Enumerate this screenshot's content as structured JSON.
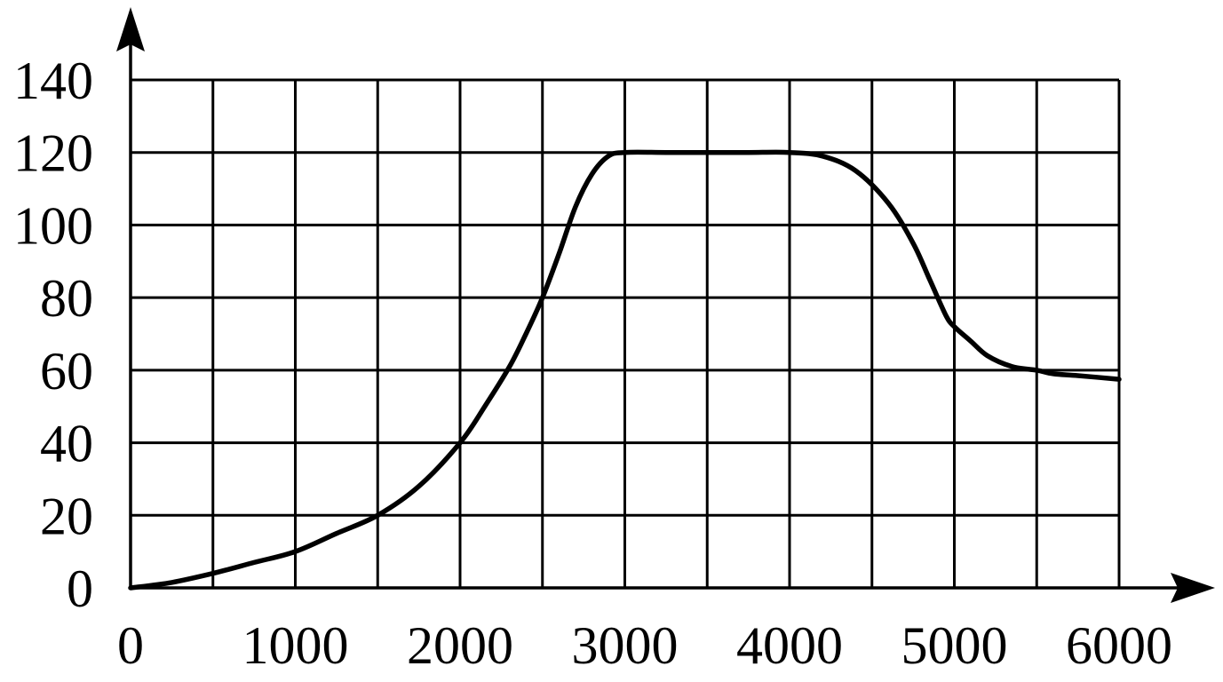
{
  "chart_data": {
    "type": "line",
    "title": "",
    "xlabel": "",
    "ylabel": "",
    "xlim": [
      0,
      6000
    ],
    "ylim": [
      0,
      140
    ],
    "x_ticks": [
      0,
      1000,
      2000,
      3000,
      4000,
      5000,
      6000
    ],
    "x_tick_labels": [
      "0",
      "1000",
      "2000",
      "3000",
      "4000",
      "5000",
      "6000"
    ],
    "y_ticks": [
      0,
      20,
      40,
      60,
      80,
      100,
      120,
      140
    ],
    "y_tick_labels": [
      "0",
      "20",
      "40",
      "60",
      "80",
      "100",
      "120",
      "140"
    ],
    "x_gridlines": [
      500,
      1000,
      1500,
      2000,
      2500,
      3000,
      3500,
      4000,
      4500,
      5000,
      5500,
      6000
    ],
    "y_gridlines": [
      20,
      40,
      60,
      80,
      100,
      120,
      140
    ],
    "grid": true,
    "legend": "none",
    "series": [
      {
        "color": "#000000",
        "x": [
          0,
          250,
          500,
          750,
          1000,
          1250,
          1500,
          1750,
          2000,
          2150,
          2300,
          2400,
          2500,
          2600,
          2700,
          2800,
          2900,
          3000,
          3250,
          3500,
          3750,
          4000,
          4200,
          4400,
          4600,
          4750,
          4850,
          4950,
          5000,
          5100,
          5200,
          5350,
          5500,
          5600,
          5750,
          6000
        ],
        "y": [
          0,
          1.5,
          4,
          7,
          10,
          15,
          20,
          28,
          40,
          50,
          61,
          70,
          80,
          92,
          105,
          114,
          119,
          120,
          120,
          120,
          120,
          120,
          119,
          115,
          106,
          95,
          85,
          75,
          72,
          68,
          64,
          61,
          60,
          59,
          58.5,
          57.5
        ]
      }
    ]
  }
}
